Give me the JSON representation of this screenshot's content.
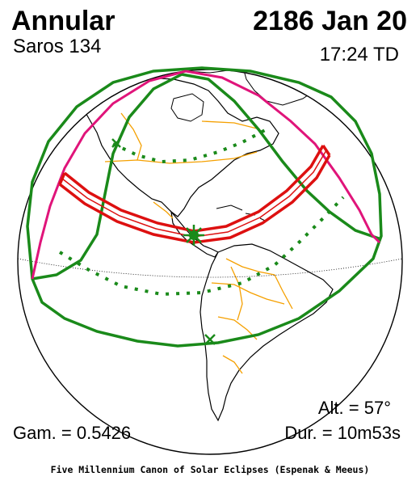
{
  "header": {
    "eclipse_type": "Annular",
    "saros": "Saros 134",
    "date": "2186 Jan 20",
    "time": "17:24 TD"
  },
  "stats": {
    "altitude": "Alt. = 57°",
    "gamma": "Gam. = 0.5426",
    "duration": "Dur. = 10m53s"
  },
  "footer": {
    "credit": "Five Millennium Canon of Solar Eclipses (Espenak & Meeus)"
  },
  "colors": {
    "night": "#bdbdbd",
    "coast": "#000000",
    "borders": "#f5a000",
    "penumbra": "#1a8a1a",
    "rise_set": "#e0147a",
    "central_path": "#dd1010"
  },
  "icons": {
    "greatest_eclipse": "asterisk-icon",
    "contact_point": "x-mark-icon"
  }
}
